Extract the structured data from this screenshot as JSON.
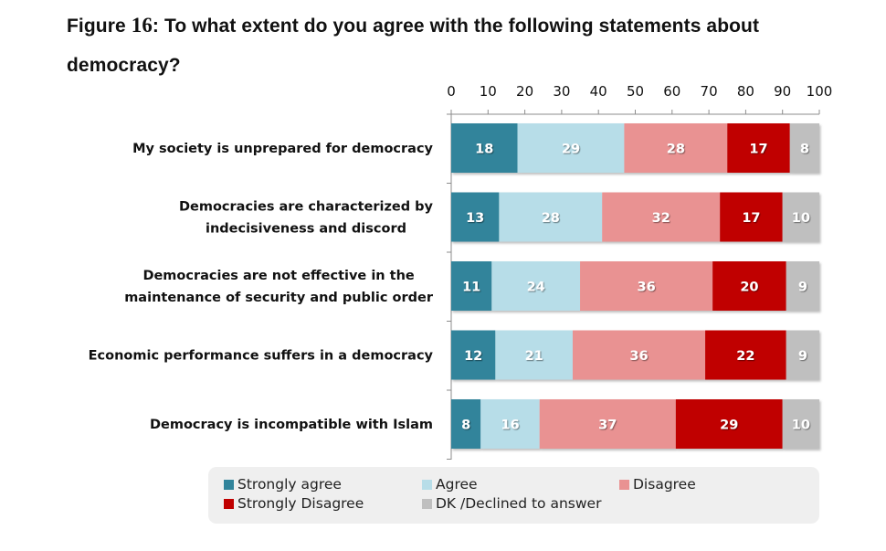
{
  "figure": {
    "label": "Figure",
    "number": "16",
    "title_rest": ": To what extent do you agree with the following statements about democracy?"
  },
  "chart_data": {
    "type": "bar",
    "orientation": "horizontal",
    "stacked": true,
    "title": "Figure 16: To what extent do you agree with the following statements about democracy?",
    "xlabel": "",
    "ylabel": "",
    "xlim": [
      0,
      100
    ],
    "x_ticks": [
      0,
      10,
      20,
      30,
      40,
      50,
      60,
      70,
      80,
      90,
      100
    ],
    "x_axis_position": "top",
    "grid": false,
    "legend_position": "bottom",
    "categories": [
      "My society is unprepared for democracy",
      "Democracies are characterized by indecisiveness and discord",
      "Democracies are not effective in the maintenance of security and public order",
      "Economic performance suffers in a democracy",
      "Democracy is incompatible with Islam"
    ],
    "category_lines": [
      [
        "My society is unprepared for democracy"
      ],
      [
        "Democracies are characterized by",
        "indecisiveness and discord"
      ],
      [
        "Democracies are not effective in the",
        "maintenance of security and public order"
      ],
      [
        "Economic performance suffers in a democracy"
      ],
      [
        "Democracy is incompatible with Islam"
      ]
    ],
    "series": [
      {
        "name": "Strongly agree",
        "color": "#31849b",
        "label_color": "#ffffff",
        "values": [
          18,
          13,
          11,
          12,
          8
        ]
      },
      {
        "name": "Agree",
        "color": "#b7dde8",
        "label_color": "#ffffff",
        "values": [
          29,
          28,
          24,
          21,
          16
        ]
      },
      {
        "name": "Disagree",
        "color": "#e99292",
        "label_color": "#ffffff",
        "values": [
          28,
          32,
          36,
          36,
          37
        ]
      },
      {
        "name": "Strongly Disagree",
        "color": "#c00000",
        "label_color": "#ffffff",
        "values": [
          17,
          17,
          20,
          22,
          29
        ]
      },
      {
        "name": "DK /Declined to answer",
        "color": "#bfbfbf",
        "label_color": "#ffffff",
        "values": [
          8,
          10,
          9,
          9,
          10
        ]
      }
    ]
  }
}
